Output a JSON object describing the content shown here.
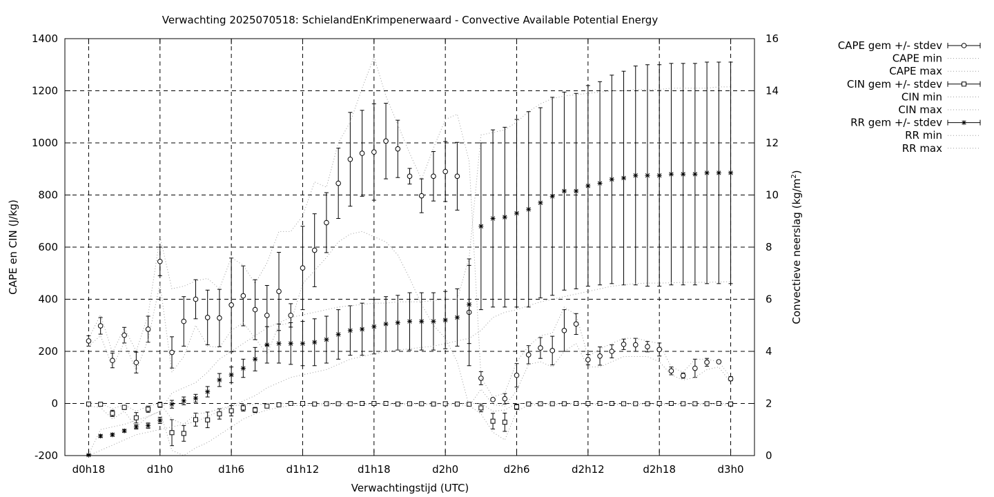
{
  "chart_data": {
    "type": "line",
    "title": "Verwachting 2025070518: SchielandEnKrimpenerwaard - Convective Available Potential Energy",
    "xlabel": "Verwachtingstijd (UTC)",
    "ylabel": "CAPE en CIN (J/kg)",
    "y2label": "Convectieve neerslag (kg/m",
    "y2label_sup": "2",
    "y2label_end": ")",
    "x_unit": "hours since d0h18",
    "x_tick_values": [
      0,
      6,
      12,
      18,
      24,
      30,
      36,
      42,
      48,
      54
    ],
    "x_tick_labels": [
      "d0h18",
      "d1h0",
      "d1h6",
      "d1h12",
      "d1h18",
      "d2h0",
      "d2h6",
      "d2h12",
      "d2h18",
      "d3h0"
    ],
    "xlim": [
      -2,
      56
    ],
    "ylim": [
      -200,
      1400
    ],
    "y_ticks": [
      -200,
      0,
      200,
      400,
      600,
      800,
      1000,
      1200,
      1400
    ],
    "y2lim": [
      0,
      16
    ],
    "y2_ticks": [
      0,
      2,
      4,
      6,
      8,
      10,
      12,
      14,
      16
    ],
    "grid": true,
    "legend_position": "outside-right",
    "series": [
      {
        "name": "CAPE gem +/- stdev",
        "style": "errorbar-circle",
        "axis": "y",
        "x": [
          0,
          1,
          2,
          3,
          4,
          5,
          6,
          7,
          8,
          9,
          10,
          11,
          12,
          13,
          14,
          15,
          16,
          17,
          18,
          19,
          20,
          21,
          22,
          23,
          24,
          25,
          26,
          27,
          28,
          29,
          30,
          31,
          32,
          33,
          34,
          35,
          36,
          37,
          38,
          39,
          40,
          41,
          42,
          43,
          44,
          45,
          46,
          47,
          48,
          49,
          50,
          51,
          52,
          53,
          54
        ],
        "values": [
          240,
          298,
          165,
          262,
          157,
          285,
          545,
          196,
          315,
          400,
          330,
          328,
          378,
          413,
          360,
          338,
          430,
          338,
          520,
          588,
          694,
          845,
          937,
          960,
          965,
          1007,
          977,
          872,
          797,
          872,
          890,
          872,
          350,
          97,
          15,
          18,
          108,
          187,
          213,
          203,
          280,
          305,
          168,
          182,
          200,
          227,
          225,
          218,
          207,
          125,
          107,
          135,
          158,
          160,
          95
        ],
        "stdev": [
          20,
          32,
          28,
          30,
          40,
          50,
          55,
          60,
          95,
          75,
          105,
          110,
          180,
          115,
          115,
          115,
          150,
          45,
          160,
          140,
          115,
          135,
          180,
          165,
          185,
          145,
          110,
          30,
          65,
          95,
          115,
          130,
          205,
          25,
          5,
          20,
          45,
          35,
          40,
          55,
          80,
          40,
          20,
          35,
          25,
          20,
          25,
          20,
          25,
          15,
          10,
          35,
          15,
          5,
          8
        ]
      },
      {
        "name": "CAPE min",
        "style": "dotted",
        "axis": "y",
        "x": [
          0,
          1,
          2,
          3,
          4,
          5,
          6,
          7,
          8,
          9,
          10,
          11,
          12,
          13,
          14,
          15,
          16,
          17,
          18,
          19,
          20,
          21,
          22,
          23,
          24,
          25,
          26,
          27,
          28,
          29,
          30,
          31,
          32,
          33,
          34,
          35,
          36,
          37,
          38,
          39,
          40,
          41,
          42,
          43,
          44,
          45,
          46,
          47,
          48,
          49,
          50,
          51,
          52,
          53,
          54
        ],
        "values": [
          220,
          260,
          140,
          235,
          125,
          245,
          460,
          120,
          180,
          300,
          220,
          215,
          280,
          310,
          250,
          190,
          300,
          310,
          460,
          510,
          560,
          620,
          650,
          660,
          640,
          620,
          570,
          480,
          380,
          300,
          250,
          160,
          -10,
          55,
          -5,
          -10,
          50,
          150,
          160,
          140,
          200,
          230,
          140,
          140,
          160,
          180,
          180,
          180,
          160,
          110,
          90,
          100,
          130,
          140,
          80
        ]
      },
      {
        "name": "CAPE max",
        "style": "dotted",
        "axis": "y",
        "x": [
          0,
          1,
          2,
          3,
          4,
          5,
          6,
          7,
          8,
          9,
          10,
          11,
          12,
          13,
          14,
          15,
          16,
          17,
          18,
          19,
          20,
          21,
          22,
          23,
          24,
          25,
          26,
          27,
          28,
          29,
          30,
          31,
          32,
          33,
          34,
          35,
          36,
          37,
          38,
          39,
          40,
          41,
          42,
          43,
          44,
          45,
          46,
          47,
          48,
          49,
          50,
          51,
          52,
          53,
          54
        ],
        "values": [
          250,
          340,
          195,
          290,
          200,
          340,
          640,
          440,
          450,
          470,
          480,
          440,
          560,
          530,
          460,
          540,
          660,
          660,
          720,
          850,
          830,
          1000,
          1080,
          1210,
          1330,
          1180,
          1070,
          960,
          860,
          980,
          1090,
          1110,
          930,
          100,
          25,
          40,
          160,
          220,
          260,
          270,
          370,
          340,
          180,
          210,
          230,
          250,
          250,
          240,
          230,
          140,
          120,
          170,
          170,
          160,
          100
        ]
      },
      {
        "name": "CIN gem +/- stdev",
        "style": "errorbar-square",
        "axis": "y",
        "x": [
          0,
          1,
          2,
          3,
          4,
          5,
          6,
          7,
          8,
          9,
          10,
          11,
          12,
          13,
          14,
          15,
          16,
          17,
          18,
          19,
          20,
          21,
          22,
          23,
          24,
          25,
          26,
          27,
          28,
          29,
          30,
          31,
          32,
          33,
          34,
          35,
          36,
          37,
          38,
          39,
          40,
          41,
          42,
          43,
          44,
          45,
          46,
          47,
          48,
          49,
          50,
          51,
          52,
          53,
          54
        ],
        "values": [
          -2,
          -3,
          -38,
          -15,
          -55,
          -22,
          -5,
          -112,
          -115,
          -62,
          -63,
          -40,
          -28,
          -17,
          -25,
          -10,
          -5,
          0,
          0,
          -2,
          -1,
          -1,
          -1,
          0,
          0,
          0,
          -2,
          -1,
          -1,
          -2,
          -1,
          -2,
          -3,
          -17,
          -68,
          -72,
          -13,
          -2,
          -1,
          -1,
          -1,
          0,
          0,
          0,
          0,
          -1,
          -1,
          -1,
          0,
          0,
          -1,
          -1,
          -1,
          0,
          -2
        ],
        "stdev": [
          5,
          5,
          12,
          8,
          20,
          12,
          10,
          50,
          30,
          25,
          30,
          20,
          20,
          12,
          10,
          5,
          5,
          3,
          5,
          4,
          3,
          3,
          3,
          3,
          3,
          3,
          3,
          3,
          3,
          3,
          3,
          3,
          5,
          15,
          30,
          35,
          10,
          3,
          3,
          3,
          3,
          3,
          3,
          3,
          3,
          3,
          3,
          3,
          3,
          3,
          3,
          3,
          3,
          3,
          8
        ]
      },
      {
        "name": "CIN min",
        "style": "dotted",
        "axis": "y",
        "x": [
          0,
          1,
          2,
          3,
          4,
          5,
          6,
          7,
          8,
          9,
          10,
          11,
          12,
          13,
          14,
          15,
          16,
          17,
          18,
          19,
          20,
          21,
          22,
          23,
          24,
          25,
          26,
          27,
          28,
          29,
          30,
          31,
          32,
          33,
          34,
          35,
          36,
          37,
          38,
          39,
          40,
          41,
          42,
          43,
          44,
          45,
          46,
          47,
          48,
          49,
          50,
          51,
          52,
          53,
          54
        ],
        "values": [
          -10,
          -15,
          -60,
          -30,
          -90,
          -50,
          -30,
          -180,
          -210,
          -170,
          -150,
          -120,
          -90,
          -60,
          -40,
          -25,
          -15,
          -8,
          -8,
          -6,
          -5,
          -5,
          -5,
          -4,
          -4,
          -4,
          -5,
          -4,
          -4,
          -5,
          -4,
          -5,
          -8,
          -40,
          -110,
          -140,
          -30,
          -6,
          -4,
          -4,
          -4,
          -4,
          -4,
          -4,
          -4,
          -4,
          -4,
          -4,
          -4,
          -4,
          -4,
          -4,
          -4,
          -4,
          -6
        ]
      },
      {
        "name": "CIN max",
        "style": "dotted",
        "axis": "y",
        "x": [
          0,
          1,
          2,
          3,
          4,
          5,
          6,
          7,
          8,
          9,
          10,
          11,
          12,
          13,
          14,
          15,
          16,
          17,
          18,
          19,
          20,
          21,
          22,
          23,
          24,
          25,
          26,
          27,
          28,
          29,
          30,
          31,
          32,
          33,
          34,
          35,
          36,
          37,
          38,
          39,
          40,
          41,
          42,
          43,
          44,
          45,
          46,
          47,
          48,
          49,
          50,
          51,
          52,
          53,
          54
        ],
        "values": [
          0,
          0,
          -20,
          -5,
          -30,
          -10,
          0,
          -60,
          -80,
          -40,
          -35,
          -20,
          -10,
          -5,
          -5,
          -2,
          0,
          0,
          0,
          0,
          0,
          0,
          0,
          0,
          0,
          0,
          0,
          0,
          0,
          0,
          0,
          0,
          0,
          0,
          -30,
          -25,
          0,
          0,
          0,
          0,
          0,
          0,
          0,
          0,
          0,
          0,
          0,
          0,
          0,
          0,
          0,
          0,
          0,
          0,
          0
        ]
      },
      {
        "name": "RR gem +/- stdev",
        "style": "errorbar-star",
        "axis": "y2",
        "x": [
          0,
          1,
          2,
          3,
          4,
          5,
          6,
          7,
          8,
          9,
          10,
          11,
          12,
          13,
          14,
          15,
          16,
          17,
          18,
          19,
          20,
          21,
          22,
          23,
          24,
          25,
          26,
          27,
          28,
          29,
          30,
          31,
          32,
          33,
          34,
          35,
          36,
          37,
          38,
          39,
          40,
          41,
          42,
          43,
          44,
          45,
          46,
          47,
          48,
          49,
          50,
          51,
          52,
          53,
          54
        ],
        "values": [
          0.02,
          0.75,
          0.8,
          0.95,
          1.1,
          1.15,
          1.35,
          1.97,
          2.1,
          2.2,
          2.45,
          2.9,
          3.1,
          3.35,
          3.7,
          4.25,
          4.3,
          4.3,
          4.3,
          4.35,
          4.45,
          4.65,
          4.8,
          4.85,
          4.95,
          5.05,
          5.1,
          5.15,
          5.15,
          5.15,
          5.2,
          5.3,
          5.8,
          8.8,
          9.1,
          9.15,
          9.3,
          9.45,
          9.7,
          9.95,
          10.15,
          10.15,
          10.35,
          10.45,
          10.6,
          10.65,
          10.75,
          10.75,
          10.75,
          10.8,
          10.8,
          10.8,
          10.85,
          10.85,
          10.85
        ],
        "stdev": [
          0.02,
          0.05,
          0.05,
          0.05,
          0.08,
          0.1,
          0.12,
          0.15,
          0.15,
          0.15,
          0.2,
          0.25,
          0.3,
          0.35,
          0.45,
          0.7,
          0.75,
          0.8,
          0.85,
          0.9,
          0.9,
          0.95,
          0.95,
          1.0,
          1.05,
          1.05,
          1.05,
          1.1,
          1.1,
          1.1,
          1.1,
          1.1,
          1.5,
          3.2,
          3.4,
          3.45,
          3.6,
          3.75,
          3.65,
          3.8,
          3.8,
          3.75,
          3.85,
          3.9,
          4.0,
          4.1,
          4.2,
          4.25,
          4.25,
          4.25,
          4.25,
          4.25,
          4.25,
          4.25,
          4.25
        ]
      },
      {
        "name": "RR min",
        "style": "dotted",
        "axis": "y2",
        "x": [
          0,
          1,
          2,
          3,
          4,
          5,
          6,
          7,
          8,
          9,
          10,
          11,
          12,
          13,
          14,
          15,
          16,
          17,
          18,
          19,
          20,
          21,
          22,
          23,
          24,
          25,
          26,
          27,
          28,
          29,
          30,
          31,
          32,
          33,
          34,
          35,
          36,
          37,
          38,
          39,
          40,
          41,
          42,
          43,
          44,
          45,
          46,
          47,
          48,
          49,
          50,
          51,
          52,
          53,
          54
        ],
        "values": [
          0.0,
          0.2,
          0.4,
          0.6,
          0.8,
          0.9,
          1.0,
          1.1,
          1.2,
          1.3,
          1.5,
          1.7,
          1.9,
          2.1,
          2.3,
          2.6,
          2.8,
          3.0,
          3.1,
          3.2,
          3.3,
          3.5,
          3.7,
          3.8,
          3.9,
          4.0,
          4.05,
          4.1,
          4.15,
          4.2,
          4.3,
          4.4,
          4.5,
          4.8,
          5.3,
          5.5,
          5.6,
          5.75,
          5.9,
          6.0,
          6.1,
          6.2,
          6.3,
          6.4,
          6.5,
          6.55,
          6.6,
          6.62,
          6.62,
          6.63,
          6.65,
          6.65,
          6.65,
          6.66,
          6.68
        ]
      },
      {
        "name": "RR max",
        "style": "dotted",
        "axis": "y2",
        "x": [
          0,
          1,
          2,
          3,
          4,
          5,
          6,
          7,
          8,
          9,
          10,
          11,
          12,
          13,
          14,
          15,
          16,
          17,
          18,
          19,
          20,
          21,
          22,
          23,
          24,
          25,
          26,
          27,
          28,
          29,
          30,
          31,
          32,
          33,
          34,
          35,
          36,
          37,
          38,
          39,
          40,
          41,
          42,
          43,
          44,
          45,
          46,
          47,
          48,
          49,
          50,
          51,
          52,
          53,
          54
        ],
        "values": [
          0.05,
          1.0,
          1.1,
          1.2,
          1.35,
          1.5,
          1.7,
          2.4,
          2.6,
          2.8,
          3.2,
          3.7,
          4.0,
          4.3,
          4.6,
          4.9,
          5.1,
          5.3,
          5.4,
          5.5,
          5.6,
          5.7,
          5.75,
          5.8,
          5.85,
          5.85,
          5.9,
          5.9,
          5.9,
          5.95,
          6.0,
          6.0,
          7.6,
          12.3,
          12.4,
          12.5,
          12.8,
          13.2,
          13.5,
          13.7,
          13.8,
          13.85,
          13.9,
          13.95,
          14.0,
          14.0,
          14.05,
          14.05,
          14.05,
          14.1,
          14.1,
          14.1,
          14.1,
          14.15,
          14.15
        ]
      }
    ]
  }
}
